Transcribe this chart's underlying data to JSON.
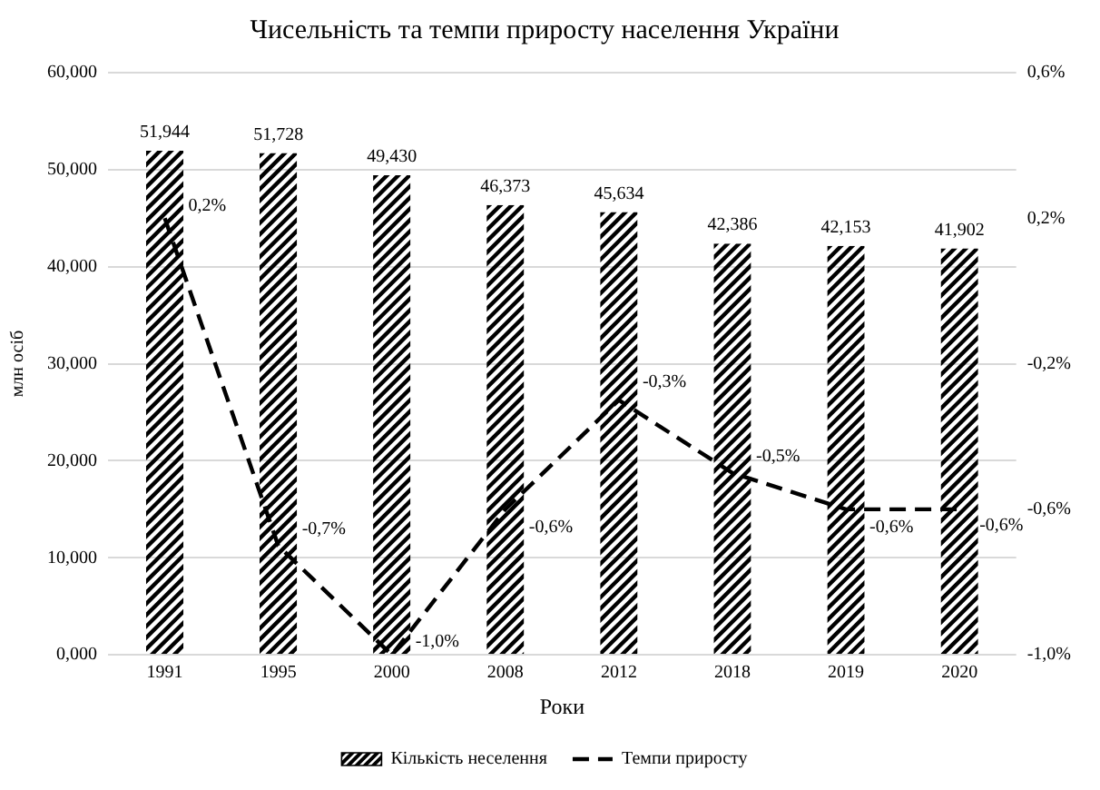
{
  "chart_data": {
    "type": "bar",
    "title": "Чисельність та темпи приросту населення України",
    "xlabel": "Роки",
    "ylabel": "млн осіб",
    "categories": [
      "1991",
      "1995",
      "2000",
      "2008",
      "2012",
      "2018",
      "2019",
      "2020"
    ],
    "series": [
      {
        "name": "Кількість неселення",
        "color": "#000000",
        "values": [
          51.944,
          51.728,
          49.43,
          46.373,
          45.634,
          42.386,
          42.153,
          41.902
        ],
        "value_labels": [
          "51,944",
          "51,728",
          "49,430",
          "46,373",
          "45,634",
          "42,386",
          "42,153",
          "41,902"
        ]
      },
      {
        "name": "Темпи приросту",
        "type": "line",
        "color": "#000000",
        "axis": "y2",
        "values": [
          0.2,
          -0.7,
          -1.0,
          -0.6,
          -0.3,
          -0.5,
          -0.6,
          -0.6
        ],
        "value_labels": [
          "0,2%",
          "-0,7%",
          "-1,0%",
          "-0,6%",
          "-0,3%",
          "-0,5%",
          "-0,6%",
          "-0,6%"
        ]
      }
    ],
    "ylim": [
      0,
      60
    ],
    "yticks": [
      {
        "value": 0,
        "label": "0,000"
      },
      {
        "value": 10,
        "label": "10,000"
      },
      {
        "value": 20,
        "label": "20,000"
      },
      {
        "value": 30,
        "label": "30,000"
      },
      {
        "value": 40,
        "label": "40,000"
      },
      {
        "value": 50,
        "label": "50,000"
      },
      {
        "value": 60,
        "label": "60,000"
      }
    ],
    "y2lim": [
      -1.0,
      0.6
    ],
    "y2ticks": [
      {
        "value": -1.0,
        "label": "-1,0%"
      },
      {
        "value": -0.6,
        "label": "-0,6%"
      },
      {
        "value": -0.2,
        "label": "-0,2%"
      },
      {
        "value": 0.2,
        "label": "0,2%"
      },
      {
        "value": 0.6,
        "label": "0,6%"
      }
    ],
    "grid": "y",
    "legend": "bottom",
    "line_style": "dashed"
  }
}
